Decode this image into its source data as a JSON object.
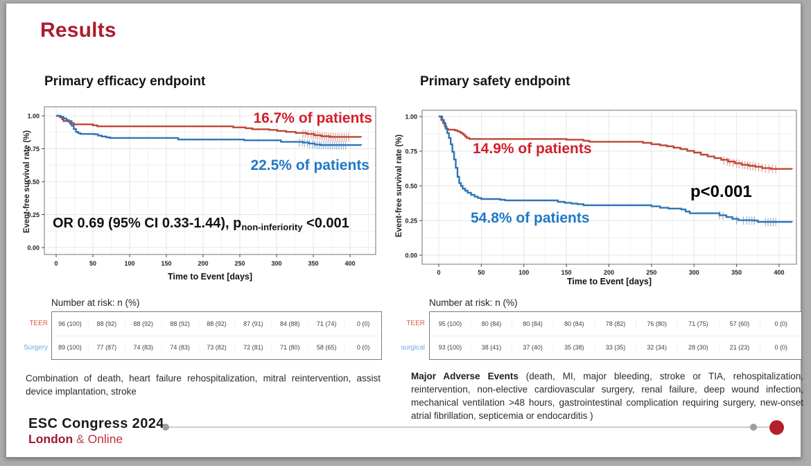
{
  "slide_title": "Results",
  "chart_data": [
    {
      "type": "line",
      "title": "Primary efficacy endpoint",
      "xlabel": "Time to Event [days]",
      "ylabel": "Event-free survival rate (%)",
      "xlim": [
        0,
        400
      ],
      "ylim": [
        0,
        1
      ],
      "xticks": [
        0,
        50,
        100,
        150,
        200,
        250,
        300,
        350,
        400
      ],
      "yticks": [
        0,
        0.25,
        0.5,
        0.75,
        1
      ],
      "ytick_labels": [
        "0.00",
        "0.25",
        "0.50",
        "0.75",
        "1.00"
      ],
      "grid": true,
      "series": [
        {
          "name": "TEER",
          "color": "#bd4636",
          "steps": [
            [
              0,
              1
            ],
            [
              5,
              0.99
            ],
            [
              8,
              0.975
            ],
            [
              10,
              0.96
            ],
            [
              21,
              0.945
            ],
            [
              24,
              0.935
            ],
            [
              50,
              0.928
            ],
            [
              56,
              0.92
            ],
            [
              233,
              0.92
            ],
            [
              241,
              0.912
            ],
            [
              258,
              0.905
            ],
            [
              267,
              0.898
            ],
            [
              290,
              0.893
            ],
            [
              301,
              0.885
            ],
            [
              313,
              0.878
            ],
            [
              326,
              0.87
            ],
            [
              341,
              0.862
            ],
            [
              351,
              0.852
            ],
            [
              361,
              0.845
            ],
            [
              372,
              0.84
            ],
            [
              415,
              0.838
            ]
          ],
          "censors": [
            [
              336,
              0.864
            ],
            [
              339,
              0.862
            ],
            [
              343,
              0.862
            ],
            [
              347,
              0.858
            ],
            [
              350,
              0.853
            ],
            [
              353,
              0.852
            ],
            [
              356,
              0.849
            ],
            [
              359,
              0.846
            ],
            [
              362,
              0.845
            ],
            [
              365,
              0.843
            ],
            [
              368,
              0.841
            ],
            [
              371,
              0.84
            ],
            [
              374,
              0.84
            ],
            [
              377,
              0.839
            ],
            [
              380,
              0.839
            ],
            [
              383,
              0.838
            ],
            [
              386,
              0.838
            ],
            [
              389,
              0.838
            ],
            [
              392,
              0.838
            ],
            [
              395,
              0.838
            ],
            [
              398,
              0.838
            ]
          ]
        },
        {
          "name": "Surgery",
          "color": "#2e74b5",
          "steps": [
            [
              0,
              1
            ],
            [
              6,
              0.992
            ],
            [
              10,
              0.98
            ],
            [
              14,
              0.968
            ],
            [
              17,
              0.955
            ],
            [
              19,
              0.94
            ],
            [
              21,
              0.925
            ],
            [
              24,
              0.9
            ],
            [
              27,
              0.878
            ],
            [
              30,
              0.868
            ],
            [
              33,
              0.862
            ],
            [
              52,
              0.86
            ],
            [
              57,
              0.85
            ],
            [
              62,
              0.843
            ],
            [
              68,
              0.837
            ],
            [
              73,
              0.832
            ],
            [
              158,
              0.832
            ],
            [
              166,
              0.82
            ],
            [
              248,
              0.82
            ],
            [
              256,
              0.814
            ],
            [
              298,
              0.814
            ],
            [
              306,
              0.802
            ],
            [
              336,
              0.797
            ],
            [
              344,
              0.79
            ],
            [
              352,
              0.782
            ],
            [
              360,
              0.778
            ],
            [
              415,
              0.776
            ]
          ],
          "censors": [
            [
              331,
              0.797
            ],
            [
              335,
              0.797
            ],
            [
              338,
              0.793
            ],
            [
              342,
              0.79
            ],
            [
              345,
              0.787
            ],
            [
              349,
              0.784
            ],
            [
              352,
              0.782
            ],
            [
              355,
              0.78
            ],
            [
              358,
              0.779
            ],
            [
              361,
              0.778
            ],
            [
              364,
              0.778
            ],
            [
              367,
              0.777
            ],
            [
              370,
              0.777
            ],
            [
              373,
              0.777
            ],
            [
              376,
              0.776
            ],
            [
              379,
              0.776
            ],
            [
              382,
              0.776
            ],
            [
              385,
              0.776
            ],
            [
              388,
              0.776
            ],
            [
              391,
              0.776
            ],
            [
              394,
              0.776
            ]
          ]
        }
      ],
      "annotations": [
        {
          "text": "16.7% of patients",
          "color": "#d21f2c"
        },
        {
          "text": "22.5% of patients",
          "color": "#1f78c8"
        }
      ],
      "stat_text": {
        "prefix": "OR 0.69 (95% CI 0.33-1.44), p",
        "sub": "non-inferiority",
        "suffix": " <0.001"
      }
    },
    {
      "type": "line",
      "title": "Primary safety endpoint",
      "xlabel": "Time to Event [days]",
      "ylabel": "Event-free survival rate (%)",
      "xlim": [
        0,
        400
      ],
      "ylim": [
        0,
        1
      ],
      "xticks": [
        0,
        50,
        100,
        150,
        200,
        250,
        300,
        350,
        400
      ],
      "yticks": [
        0,
        0.25,
        0.5,
        0.75,
        1
      ],
      "ytick_labels": [
        "0.00",
        "0.25",
        "0.50",
        "0.75",
        "1.00"
      ],
      "grid": true,
      "series": [
        {
          "name": "TEER",
          "color": "#bd4636",
          "steps": [
            [
              0,
              1
            ],
            [
              3,
              0.975
            ],
            [
              5,
              0.955
            ],
            [
              7,
              0.93
            ],
            [
              9,
              0.91
            ],
            [
              11,
              0.905
            ],
            [
              19,
              0.9
            ],
            [
              22,
              0.893
            ],
            [
              25,
              0.885
            ],
            [
              27,
              0.878
            ],
            [
              29,
              0.868
            ],
            [
              31,
              0.855
            ],
            [
              33,
              0.845
            ],
            [
              36,
              0.838
            ],
            [
              143,
              0.838
            ],
            [
              150,
              0.833
            ],
            [
              163,
              0.833
            ],
            [
              170,
              0.825
            ],
            [
              177,
              0.818
            ],
            [
              232,
              0.818
            ],
            [
              240,
              0.81
            ],
            [
              250,
              0.8
            ],
            [
              260,
              0.792
            ],
            [
              268,
              0.785
            ],
            [
              276,
              0.775
            ],
            [
              284,
              0.765
            ],
            [
              292,
              0.752
            ],
            [
              300,
              0.74
            ],
            [
              308,
              0.725
            ],
            [
              316,
              0.712
            ],
            [
              324,
              0.7
            ],
            [
              332,
              0.688
            ],
            [
              340,
              0.675
            ],
            [
              348,
              0.663
            ],
            [
              356,
              0.652
            ],
            [
              364,
              0.645
            ],
            [
              372,
              0.638
            ],
            [
              380,
              0.628
            ],
            [
              390,
              0.622
            ],
            [
              415,
              0.62
            ]
          ],
          "censors": [
            [
              335,
              0.682
            ],
            [
              339,
              0.676
            ],
            [
              342,
              0.672
            ],
            [
              346,
              0.666
            ],
            [
              350,
              0.66
            ],
            [
              353,
              0.657
            ],
            [
              357,
              0.652
            ],
            [
              360,
              0.65
            ],
            [
              363,
              0.647
            ],
            [
              366,
              0.643
            ],
            [
              369,
              0.641
            ],
            [
              372,
              0.638
            ],
            [
              376,
              0.635
            ],
            [
              380,
              0.628
            ],
            [
              384,
              0.625
            ],
            [
              388,
              0.623
            ],
            [
              392,
              0.622
            ],
            [
              396,
              0.62
            ]
          ]
        },
        {
          "name": "surgical",
          "color": "#2e74b5",
          "steps": [
            [
              0,
              1
            ],
            [
              4,
              0.975
            ],
            [
              6,
              0.95
            ],
            [
              8,
              0.915
            ],
            [
              10,
              0.88
            ],
            [
              12,
              0.845
            ],
            [
              14,
              0.8
            ],
            [
              16,
              0.745
            ],
            [
              18,
              0.69
            ],
            [
              20,
              0.63
            ],
            [
              22,
              0.565
            ],
            [
              24,
              0.52
            ],
            [
              26,
              0.5
            ],
            [
              28,
              0.48
            ],
            [
              31,
              0.465
            ],
            [
              34,
              0.45
            ],
            [
              38,
              0.435
            ],
            [
              42,
              0.422
            ],
            [
              46,
              0.412
            ],
            [
              50,
              0.405
            ],
            [
              72,
              0.4
            ],
            [
              78,
              0.395
            ],
            [
              133,
              0.395
            ],
            [
              140,
              0.385
            ],
            [
              148,
              0.378
            ],
            [
              156,
              0.372
            ],
            [
              163,
              0.368
            ],
            [
              170,
              0.36
            ],
            [
              243,
              0.36
            ],
            [
              250,
              0.352
            ],
            [
              260,
              0.342
            ],
            [
              270,
              0.336
            ],
            [
              285,
              0.33
            ],
            [
              290,
              0.315
            ],
            [
              295,
              0.302
            ],
            [
              322,
              0.302
            ],
            [
              330,
              0.288
            ],
            [
              338,
              0.275
            ],
            [
              345,
              0.262
            ],
            [
              352,
              0.252
            ],
            [
              370,
              0.25
            ],
            [
              375,
              0.24
            ],
            [
              415,
              0.238
            ]
          ],
          "censors": [
            [
              330,
              0.288
            ],
            [
              334,
              0.283
            ],
            [
              350,
              0.253
            ],
            [
              358,
              0.25
            ],
            [
              362,
              0.25
            ],
            [
              365,
              0.25
            ],
            [
              368,
              0.25
            ],
            [
              371,
              0.25
            ],
            [
              384,
              0.238
            ],
            [
              387,
              0.238
            ],
            [
              390,
              0.238
            ],
            [
              393,
              0.238
            ],
            [
              396,
              0.238
            ]
          ]
        }
      ],
      "annotations": [
        {
          "text": "14.9% of patients",
          "color": "#d21f2c"
        },
        {
          "text": "54.8% of patients",
          "color": "#1f78c8"
        },
        {
          "text": "p<0.001",
          "color": "#000000"
        }
      ]
    }
  ],
  "risk_tables": [
    {
      "heading": "Number at risk: n (%)",
      "rows": [
        {
          "label": "TEER",
          "color": "#dd5a48",
          "values": [
            "96 (100)",
            "88 (92)",
            "88 (92)",
            "88 (92)",
            "88 (92)",
            "87 (91)",
            "84 (88)",
            "71 (74)",
            "0 (0)"
          ]
        },
        {
          "label": "Surgery",
          "color": "#6fa8dc",
          "values": [
            "89 (100)",
            "77 (87)",
            "74 (83)",
            "74 (83)",
            "73 (82)",
            "72 (81)",
            "71 (80)",
            "58 (65)",
            "0 (0)"
          ]
        }
      ]
    },
    {
      "heading": "Number at risk: n (%)",
      "rows": [
        {
          "label": "TEER",
          "color": "#dd5a48",
          "values": [
            "95 (100)",
            "80 (84)",
            "80 (84)",
            "80 (84)",
            "78 (82)",
            "76 (80)",
            "71 (75)",
            "57 (60)",
            "0 (0)"
          ]
        },
        {
          "label": "surgical",
          "color": "#6fa8dc",
          "values": [
            "93 (100)",
            "38 (41)",
            "37 (40)",
            "35 (38)",
            "33 (35)",
            "32 (34)",
            "28 (30)",
            "21 (23)",
            "0 (0)"
          ]
        }
      ]
    }
  ],
  "footnotes": {
    "left": "Combination of death, heart failure rehospitalization, mitral reintervention, assist device implantation, stroke",
    "right_bold": "Major Adverse Events",
    "right_rest": " (death, MI, major bleeding, stroke or TIA, rehospitalization, reintervention, non-elective cardiovascular surgery, renal failure, deep wound infection, mechanical ventilation >48 hours, gastrointestinal complication requiring surgery, new-onset atrial fibrillation, septicemia or endocarditis )"
  },
  "footer": {
    "congress": "ESC Congress 2024",
    "city": "London",
    "amp": "&",
    "mode": "Online"
  },
  "colors": {
    "title": "#ae1c2e",
    "teer_curve": "#bd4636",
    "surgery_curve": "#2e74b5",
    "progress_dot": "#b61f2a"
  }
}
